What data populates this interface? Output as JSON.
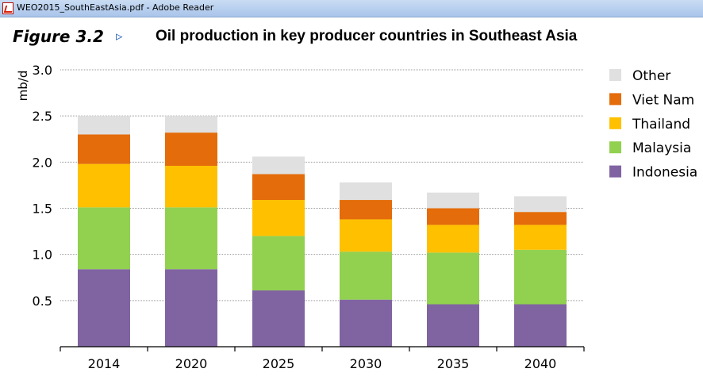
{
  "window": {
    "title": "WEO2015_SouthEastAsia.pdf - Adobe Reader",
    "icon": "pdf-file-icon"
  },
  "figure": {
    "label": "Figure 3.2",
    "arrow": "▹",
    "title": "Oil production in key producer countries in Southeast Asia"
  },
  "chart_data": {
    "type": "bar",
    "stacked": true,
    "title": "Oil production in key producer countries in Southeast Asia",
    "xlabel": "",
    "ylabel": "mb/d",
    "ylim": [
      0,
      3.0
    ],
    "yticks": [
      0.5,
      1.0,
      1.5,
      2.0,
      2.5,
      3.0
    ],
    "ytick_labels": [
      "0.5",
      "1.0",
      "1.5",
      "2.0",
      "2.5",
      "3.0"
    ],
    "grid": true,
    "legend": "right",
    "categories": [
      "2014",
      "2020",
      "2025",
      "2030",
      "2035",
      "2040"
    ],
    "series": [
      {
        "name": "Indonesia",
        "color": "#8064a2",
        "values": [
          0.84,
          0.84,
          0.61,
          0.51,
          0.46,
          0.46
        ]
      },
      {
        "name": "Malaysia",
        "color": "#92d050",
        "values": [
          0.67,
          0.67,
          0.59,
          0.52,
          0.56,
          0.59
        ]
      },
      {
        "name": "Thailand",
        "color": "#ffc000",
        "values": [
          0.47,
          0.45,
          0.39,
          0.35,
          0.3,
          0.27
        ]
      },
      {
        "name": "Viet Nam",
        "color": "#e46c0a",
        "values": [
          0.32,
          0.36,
          0.28,
          0.21,
          0.18,
          0.14
        ]
      },
      {
        "name": "Other",
        "color": "#e0e0e0",
        "values": [
          0.2,
          0.18,
          0.19,
          0.19,
          0.17,
          0.17
        ]
      }
    ]
  }
}
